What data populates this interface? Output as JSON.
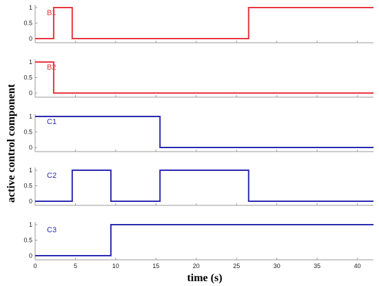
{
  "chart_data": {
    "type": "line",
    "step": true,
    "ylabel": "active control component",
    "xlabel": "time (s)",
    "xlim": [
      0,
      42
    ],
    "ylim": [
      0,
      1
    ],
    "x_ticks": [
      0,
      5,
      10,
      15,
      20,
      25,
      30,
      35,
      40
    ],
    "y_ticks": [
      "0",
      "0.5",
      "1"
    ],
    "grid": false,
    "colors": {
      "red": "#e8363e",
      "blue": "#2a2ab0"
    },
    "series": [
      {
        "name": "B1",
        "color": "#e8363e",
        "points": [
          [
            0,
            0
          ],
          [
            2.3,
            0
          ],
          [
            2.3,
            1
          ],
          [
            4.6,
            1
          ],
          [
            4.6,
            0
          ],
          [
            26.5,
            0
          ],
          [
            26.5,
            1
          ],
          [
            42,
            1
          ]
        ]
      },
      {
        "name": "B2",
        "color": "#e8363e",
        "points": [
          [
            0,
            1
          ],
          [
            2.3,
            1
          ],
          [
            2.3,
            0
          ],
          [
            42,
            0
          ]
        ]
      },
      {
        "name": "C1",
        "color": "#2a2ab0",
        "points": [
          [
            0,
            1
          ],
          [
            15.5,
            1
          ],
          [
            15.5,
            0
          ],
          [
            42,
            0
          ]
        ]
      },
      {
        "name": "C2",
        "color": "#2a2ab0",
        "points": [
          [
            0,
            0
          ],
          [
            4.6,
            0
          ],
          [
            4.6,
            1
          ],
          [
            9.4,
            1
          ],
          [
            9.4,
            0
          ],
          [
            15.5,
            0
          ],
          [
            15.5,
            1
          ],
          [
            26.5,
            1
          ],
          [
            26.5,
            0
          ],
          [
            42,
            0
          ]
        ]
      },
      {
        "name": "C3",
        "color": "#2a2ab0",
        "points": [
          [
            0,
            0
          ],
          [
            9.4,
            0
          ],
          [
            9.4,
            1
          ],
          [
            42,
            1
          ]
        ]
      }
    ]
  }
}
